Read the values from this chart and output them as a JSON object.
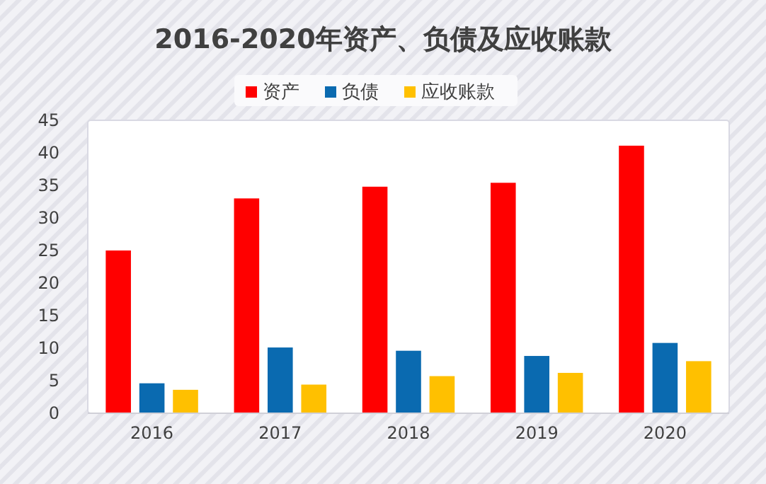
{
  "chart_data": {
    "type": "bar",
    "title": "2016-2020年资产、负债及应收账款",
    "categories": [
      "2016",
      "2017",
      "2018",
      "2019",
      "2020"
    ],
    "series": [
      {
        "name": "资产",
        "color": "#ff0000",
        "values": [
          25,
          33,
          34.8,
          35.4,
          41.1
        ]
      },
      {
        "name": "负债",
        "color": "#0a6ab0",
        "values": [
          4.6,
          10.1,
          9.6,
          8.8,
          10.8
        ]
      },
      {
        "name": "应收账款",
        "color": "#ffc000",
        "values": [
          3.6,
          4.4,
          5.7,
          6.2,
          8
        ]
      }
    ],
    "ylim": [
      0,
      45
    ],
    "yticks": [
      0,
      5,
      10,
      15,
      20,
      25,
      30,
      35,
      40,
      45
    ],
    "grid": false,
    "legend": "top"
  }
}
